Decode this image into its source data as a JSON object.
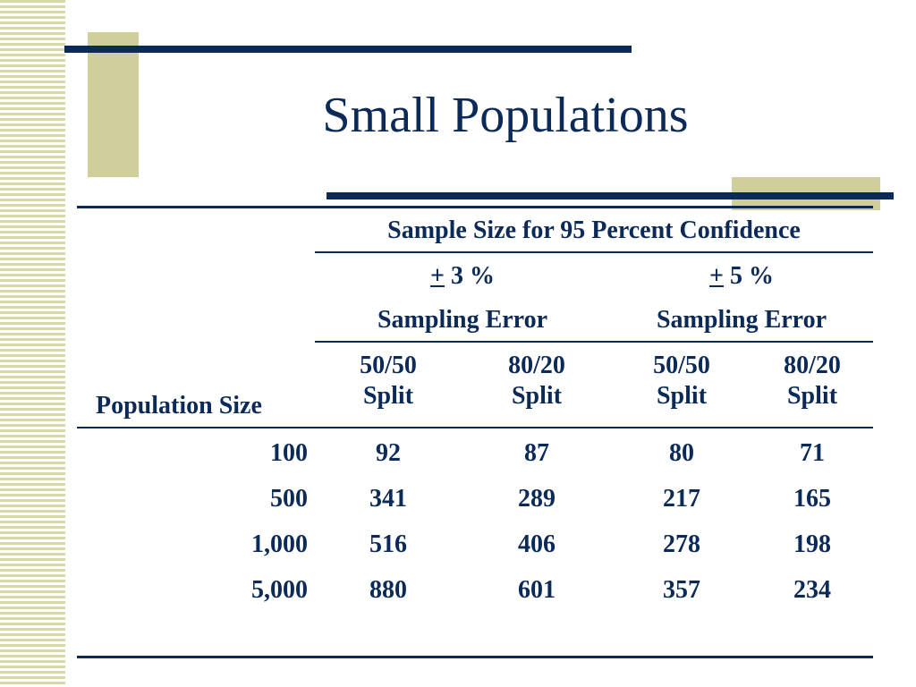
{
  "slide": {
    "title": "Small Populations"
  },
  "table": {
    "caption": "Sample Size for 95 Percent Confidence",
    "groups": [
      {
        "plusminus": "+",
        "pct": " 3 %",
        "sub": "Sampling Error"
      },
      {
        "plusminus": "+",
        "pct": " 5 %",
        "sub": "Sampling Error"
      }
    ],
    "row_header": "Population Size",
    "split_headers": [
      {
        "ratio": "50/50",
        "word": "Split"
      },
      {
        "ratio": "80/20",
        "word": "Split"
      },
      {
        "ratio": "50/50",
        "word": "Split"
      },
      {
        "ratio": "80/20",
        "word": "Split"
      }
    ],
    "rows": [
      {
        "pop": "100",
        "v": [
          "92",
          "87",
          "80",
          "71"
        ]
      },
      {
        "pop": "500",
        "v": [
          "341",
          "289",
          "217",
          "165"
        ]
      },
      {
        "pop": "1,000",
        "v": [
          "516",
          "406",
          "278",
          "198"
        ]
      },
      {
        "pop": "5,000",
        "v": [
          "880",
          "601",
          "357",
          "234"
        ]
      }
    ]
  },
  "colors": {
    "navy": "#0b2a57",
    "khaki": "#cfcf9c"
  }
}
